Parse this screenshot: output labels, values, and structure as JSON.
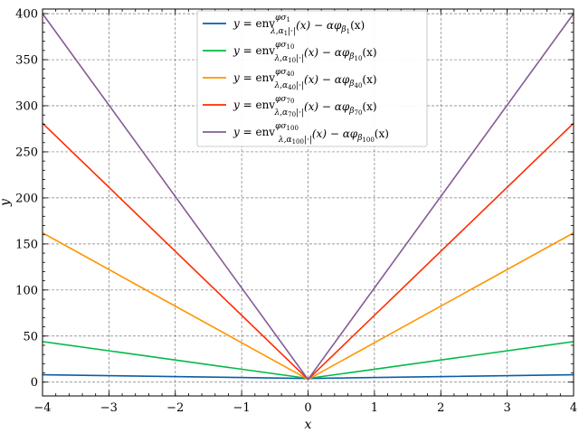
{
  "chart_data": {
    "type": "line",
    "xlabel": "x",
    "ylabel": "y",
    "xlim": [
      -4,
      4
    ],
    "ylim": [
      -15,
      405
    ],
    "xticks": [
      -4,
      -3,
      -2,
      -1,
      0,
      1,
      2,
      3,
      4
    ],
    "yticks": [
      0,
      50,
      100,
      150,
      200,
      250,
      300,
      350,
      400
    ],
    "xtick_labels": [
      "−4",
      "−3",
      "−2",
      "−1",
      "0",
      "1",
      "2",
      "3",
      "4"
    ],
    "ytick_labels": [
      "0",
      "50",
      "100",
      "150",
      "200",
      "250",
      "300",
      "350",
      "400"
    ],
    "grid": true,
    "legend_position": "top-center",
    "series": [
      {
        "name": "y = env_{λ,α1|·|}^{φσ1}(x) − αφβ1(x)",
        "color": "#0C5DA5",
        "x": [
          -4,
          0,
          4
        ],
        "y": [
          8,
          4,
          8
        ],
        "legend": {
          "lhs": "y",
          "env": "env",
          "sup": "φσ",
          "sup_sub": "1",
          "sub_pre": "λ,α",
          "sub_idx": "1",
          "sub_post": "|·|",
          "args": "(x) − αφ",
          "beta": "β",
          "beta_idx": "1",
          "tail": "(x)"
        }
      },
      {
        "name": "y = env_{λ,α10|·|}^{φσ10}(x) − αφβ10(x)",
        "color": "#00B945",
        "x": [
          -4,
          0,
          4
        ],
        "y": [
          44,
          4,
          44
        ],
        "legend": {
          "lhs": "y",
          "env": "env",
          "sup": "φσ",
          "sup_sub": "10",
          "sub_pre": "λ,α",
          "sub_idx": "10",
          "sub_post": "|·|",
          "args": "(x) − αφ",
          "beta": "β",
          "beta_idx": "10",
          "tail": "(x)"
        }
      },
      {
        "name": "y = env_{λ,α40|·|}^{φσ40}(x) − αφβ40(x)",
        "color": "#FF9500",
        "x": [
          -4,
          0,
          4
        ],
        "y": [
          162,
          3,
          162
        ],
        "legend": {
          "lhs": "y",
          "env": "env",
          "sup": "φσ",
          "sup_sub": "40",
          "sub_pre": "λ,α",
          "sub_idx": "40",
          "sub_post": "|·|",
          "args": "(x) − αφ",
          "beta": "β",
          "beta_idx": "40",
          "tail": "(x)"
        }
      },
      {
        "name": "y = env_{λ,α70|·|}^{φσ70}(x) − αφβ70(x)",
        "color": "#FF2C00",
        "x": [
          -4,
          0,
          4
        ],
        "y": [
          281,
          3,
          281
        ],
        "legend": {
          "lhs": "y",
          "env": "env",
          "sup": "φσ",
          "sup_sub": "70",
          "sub_pre": "λ,α",
          "sub_idx": "70",
          "sub_post": "|·|",
          "args": "(x) − αφ",
          "beta": "β",
          "beta_idx": "70",
          "tail": "(x)"
        }
      },
      {
        "name": "y = env_{λ,α100|·|}^{φσ100}(x) − αφβ100(x)",
        "color": "#845B97",
        "x": [
          -4,
          0,
          4
        ],
        "y": [
          400,
          3,
          400
        ],
        "legend": {
          "lhs": "y",
          "env": "env",
          "sup": "φσ",
          "sup_sub": "100",
          "sub_pre": "λ,α",
          "sub_idx": "100",
          "sub_post": "|·|",
          "args": "(x) − αφ",
          "beta": "β",
          "beta_idx": "100",
          "tail": "(x)"
        }
      }
    ]
  }
}
